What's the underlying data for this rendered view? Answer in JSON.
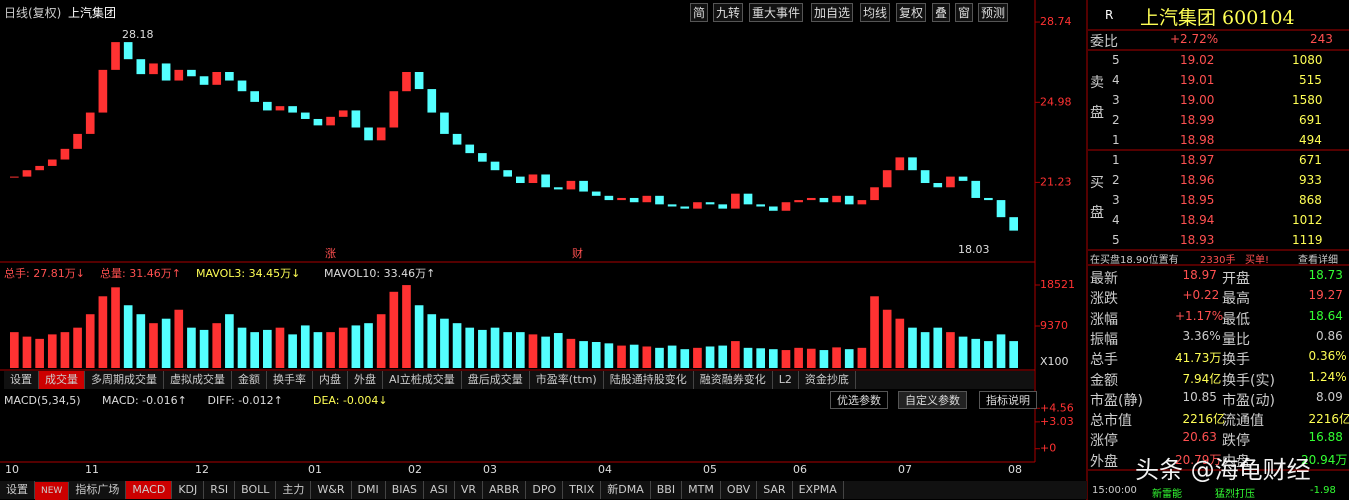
{
  "toolbar": {
    "title": "日线(复权)",
    "stock": "上汽集团",
    "buttons": [
      "简",
      "九转",
      "重大事件",
      "加自选",
      "均线",
      "复权",
      "叠",
      "窗",
      "预测"
    ]
  },
  "price_chart": {
    "type": "candlestick",
    "ylim": [
      17.5,
      29.07
    ],
    "yticks": [
      21.23,
      24.98,
      28.74
    ],
    "closes": [
      21.5,
      21.8,
      22.0,
      22.3,
      22.8,
      23.5,
      24.5,
      26.5,
      27.8,
      27.0,
      26.3,
      26.8,
      26.0,
      26.5,
      26.2,
      25.8,
      26.4,
      26.0,
      25.5,
      25.0,
      24.6,
      24.8,
      24.5,
      24.2,
      23.9,
      24.3,
      24.6,
      23.8,
      23.2,
      23.8,
      25.5,
      26.4,
      25.6,
      24.5,
      23.5,
      23.0,
      22.6,
      22.2,
      21.8,
      21.5,
      21.2,
      21.6,
      21.0,
      20.9,
      21.3,
      20.8,
      20.6,
      20.4,
      20.5,
      20.3,
      20.6,
      20.2,
      20.1,
      20.0,
      20.3,
      20.2,
      20.0,
      20.7,
      20.2,
      20.1,
      19.9,
      20.3,
      20.4,
      20.5,
      20.3,
      20.6,
      20.2,
      20.4,
      21.0,
      21.8,
      22.4,
      21.8,
      21.2,
      21.0,
      21.5,
      21.3,
      20.5,
      20.4,
      19.6,
      18.97
    ],
    "high_label": "28.18",
    "low_label": "18.03",
    "markers": [
      "涨",
      "财"
    ],
    "up_color": "#ff3232",
    "down_color": "#54ffff"
  },
  "volume_chart": {
    "type": "bar",
    "legend": [
      "总手: 27.81万↓",
      "总量: 31.46万↑",
      "MAVOL3: 34.45万↓",
      "MAVOL10: 33.46万↑"
    ],
    "ylim": [
      0,
      20080
    ],
    "yticks": [
      9370,
      18521
    ],
    "unit": "X100",
    "values": [
      8000,
      7000,
      6500,
      7500,
      8000,
      9000,
      12000,
      16000,
      18000,
      14000,
      12000,
      10000,
      11000,
      13000,
      9000,
      8500,
      10000,
      12000,
      9000,
      8000,
      8500,
      9000,
      7500,
      9500,
      8000,
      8000,
      9000,
      9500,
      10000,
      12000,
      17000,
      18500,
      14000,
      12000,
      11000,
      10000,
      9000,
      8500,
      9000,
      8000,
      8000,
      7500,
      7000,
      7800,
      6500,
      6000,
      5800,
      5500,
      5000,
      5200,
      4800,
      4500,
      5000,
      4200,
      4500,
      4800,
      5000,
      6000,
      4500,
      4400,
      4200,
      4000,
      4500,
      4300,
      4000,
      4600,
      4200,
      4500,
      16000,
      13000,
      11000,
      9000,
      8000,
      9000,
      8000,
      7000,
      6500,
      6000,
      7500,
      6000
    ]
  },
  "indicator_tabs": [
    "设置",
    "成交量",
    "多周期成交量",
    "虚拟成交量",
    "金额",
    "换手率",
    "内盘",
    "外盘",
    "AI立桩成交量",
    "盘后成交量",
    "市盈率(ttm)",
    "陆股通持股变化",
    "融资融券变化",
    "L2",
    "资金抄底"
  ],
  "macd": {
    "legend": [
      "MACD(5,34,5)",
      "MACD: -0.016↑",
      "DIFF: -0.012↑",
      "DEA: -0.004↓"
    ],
    "buttons": [
      "优选参数",
      "自定义参数",
      "指标说明"
    ],
    "ylim": [
      -1.5,
      5.5
    ],
    "yticks": [
      {
        "value": 4.56,
        "label": "+4.56"
      },
      {
        "value": 3.03,
        "label": "+3.03"
      },
      {
        "value": 0,
        "label": "+0"
      }
    ]
  },
  "months": [
    "10",
    "11",
    "12",
    "01",
    "02",
    "03",
    "04",
    "05",
    "06",
    "07",
    "08"
  ],
  "bottom_tabs": [
    "设置",
    "NEW",
    "指标广场",
    "MACD",
    "KDJ",
    "RSI",
    "BOLL",
    "主力",
    "W&R",
    "DMI",
    "BIAS",
    "ASI",
    "VR",
    "ARBR",
    "DPO",
    "TRIX",
    "新DMA",
    "BBI",
    "MTM",
    "OBV",
    "SAR",
    "EXPMA"
  ],
  "panel": {
    "r": "R",
    "name": "上汽集团 600104",
    "ratio_label": "委比",
    "ratio": "+2.72%",
    "ratio_diff": "243",
    "sell_label": [
      "卖",
      "盘"
    ],
    "buy_label": [
      "买",
      "盘"
    ],
    "sell": [
      [
        "5",
        "19.02",
        "1080"
      ],
      [
        "4",
        "19.01",
        "515"
      ],
      [
        "3",
        "19.00",
        "1580"
      ],
      [
        "2",
        "18.99",
        "691"
      ],
      [
        "1",
        "18.98",
        "494"
      ]
    ],
    "buy": [
      [
        "1",
        "18.97",
        "671"
      ],
      [
        "2",
        "18.96",
        "933"
      ],
      [
        "3",
        "18.95",
        "868"
      ],
      [
        "4",
        "18.94",
        "1012"
      ],
      [
        "5",
        "18.93",
        "1119"
      ]
    ],
    "notice": [
      "在买盘18.90位置有",
      "2330手",
      "买单!",
      "查看详细"
    ],
    "stats": [
      [
        "最新",
        "18.97",
        "开盘",
        "18.73"
      ],
      [
        "涨跌",
        "+0.22",
        "最高",
        "19.27"
      ],
      [
        "涨幅",
        "+1.17%",
        "最低",
        "18.64"
      ],
      [
        "振幅",
        "3.36%",
        "量比",
        "0.86"
      ],
      [
        "总手",
        "41.73万",
        "换手",
        "0.36%"
      ],
      [
        "金额",
        "7.94亿",
        "换手(实)",
        "1.24%"
      ],
      [
        "市盈(静)",
        "10.85",
        "市盈(动)",
        "8.09"
      ],
      [
        "总市值",
        "2216亿",
        "流通值",
        "2216亿"
      ],
      [
        "涨停",
        "20.63",
        "跌停",
        "16.88"
      ],
      [
        "外盘",
        "20.79万",
        "内盘",
        "20.94万"
      ]
    ],
    "ticker": [
      "15:00:00",
      "新雷能",
      "猛烈打压",
      "-1.98"
    ]
  },
  "watermark": "头条 @海龟财经"
}
